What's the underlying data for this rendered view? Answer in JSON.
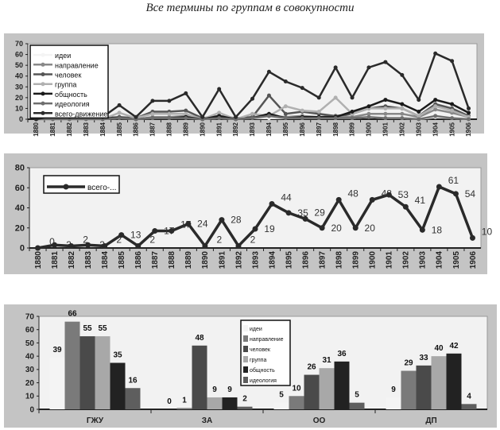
{
  "title": "Все термины по группам в совокупности",
  "chart_data": [
    {
      "type": "line",
      "title": "",
      "ylim": [
        0,
        70
      ],
      "yticks": [
        0,
        10,
        20,
        30,
        40,
        50,
        60,
        70
      ],
      "legend_placement": "top-left",
      "x": [
        "1880",
        "1881",
        "1882",
        "1883",
        "1884",
        "1885",
        "1886",
        "1887",
        "1888",
        "1889",
        "1890",
        "1891",
        "1892",
        "1893",
        "1894",
        "1895",
        "1896",
        "1897",
        "1898",
        "1899",
        "1900",
        "1901",
        "1902",
        "1903",
        "1904",
        "1905",
        "1906"
      ],
      "series": [
        {
          "name": "идеи",
          "color": "#f4f4f4",
          "values": [
            0,
            0,
            0,
            0,
            0,
            1,
            0,
            1,
            1,
            2,
            0,
            1,
            0,
            1,
            1,
            1,
            1,
            1,
            1,
            1,
            2,
            1,
            1,
            0,
            2,
            1,
            0
          ]
        },
        {
          "name": "направление",
          "color": "#888888",
          "values": [
            0,
            1,
            0,
            1,
            0,
            2,
            0,
            2,
            2,
            3,
            0,
            2,
            0,
            2,
            3,
            2,
            3,
            2,
            3,
            2,
            5,
            5,
            5,
            2,
            9,
            6,
            2
          ]
        },
        {
          "name": "человек",
          "color": "#555555",
          "values": [
            0,
            1,
            1,
            1,
            1,
            2,
            1,
            7,
            7,
            8,
            1,
            3,
            1,
            2,
            22,
            5,
            7,
            5,
            3,
            5,
            10,
            12,
            10,
            3,
            14,
            10,
            3
          ]
        },
        {
          "name": "группа",
          "color": "#b0b0b0",
          "values": [
            0,
            1,
            0,
            1,
            0,
            6,
            1,
            5,
            5,
            5,
            0,
            6,
            0,
            5,
            3,
            12,
            8,
            7,
            20,
            5,
            10,
            10,
            10,
            3,
            12,
            8,
            2
          ]
        },
        {
          "name": "общность",
          "color": "#1a1a1a",
          "values": [
            0,
            1,
            1,
            1,
            1,
            1,
            0,
            1,
            1,
            2,
            0,
            3,
            0,
            1,
            5,
            1,
            2,
            2,
            2,
            7,
            12,
            18,
            14,
            7,
            18,
            14,
            6
          ]
        },
        {
          "name": "идеология",
          "color": "#6e6e6e",
          "values": [
            0,
            0,
            0,
            0,
            0,
            1,
            0,
            1,
            1,
            1,
            0,
            1,
            0,
            1,
            3,
            1,
            1,
            1,
            1,
            1,
            2,
            1,
            1,
            0,
            3,
            1,
            0
          ]
        },
        {
          "name": "всего-движение",
          "color": "#2a2a2a",
          "values": [
            0,
            3,
            2,
            3,
            2,
            13,
            2,
            17,
            17,
            24,
            2,
            28,
            2,
            19,
            44,
            35,
            29,
            20,
            48,
            20,
            48,
            53,
            41,
            18,
            61,
            54,
            10
          ]
        }
      ]
    },
    {
      "type": "line",
      "title": "",
      "ylim": [
        0,
        80
      ],
      "yticks": [
        0,
        20,
        40,
        60,
        80
      ],
      "legend_placement": "top-left",
      "x": [
        "1880",
        "1881",
        "1882",
        "1883",
        "1884",
        "1885",
        "1886",
        "1887",
        "1888",
        "1889",
        "1890",
        "1891",
        "1892",
        "1893",
        "1894",
        "1895",
        "1896",
        "1897",
        "1898",
        "1899",
        "1900",
        "1901",
        "1902",
        "1903",
        "1904",
        "1905",
        "1906"
      ],
      "series": [
        {
          "name": "всего-...",
          "color": "#2a2a2a",
          "values": [
            0,
            3,
            2,
            3,
            2,
            13,
            2,
            17,
            17,
            24,
            2,
            28,
            2,
            19,
            44,
            35,
            29,
            20,
            48,
            20,
            48,
            53,
            41,
            18,
            61,
            54,
            10
          ]
        }
      ]
    },
    {
      "type": "bar",
      "title": "",
      "ylim": [
        0,
        70
      ],
      "yticks": [
        0,
        10,
        20,
        30,
        40,
        50,
        60,
        70
      ],
      "legend_placement": "top-center",
      "categories": [
        "ГЖУ",
        "ЗА",
        "ОО",
        "ДП"
      ],
      "series": [
        {
          "name": "идеи",
          "color": "#f4f4f4",
          "values": [
            39,
            0,
            5,
            9
          ]
        },
        {
          "name": "направление",
          "color": "#7a7a7a",
          "values": [
            66,
            1,
            10,
            29
          ]
        },
        {
          "name": "человек",
          "color": "#4a4a4a",
          "values": [
            55,
            48,
            26,
            33
          ]
        },
        {
          "name": "группа",
          "color": "#a8a8a8",
          "values": [
            55,
            9,
            31,
            40
          ]
        },
        {
          "name": "общность",
          "color": "#222222",
          "values": [
            35,
            9,
            36,
            42
          ]
        },
        {
          "name": "идеология",
          "color": "#5e5e5e",
          "values": [
            16,
            2,
            5,
            4
          ]
        }
      ]
    }
  ]
}
